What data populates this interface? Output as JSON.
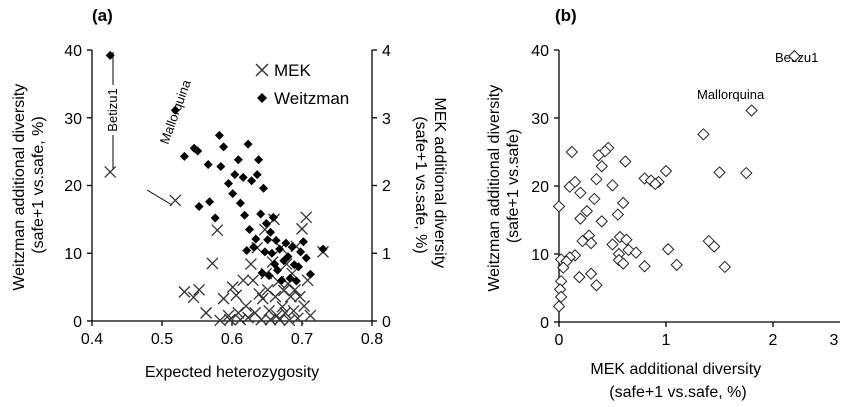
{
  "chart_data": [
    {
      "type": "scatter",
      "panel_label": "(a)",
      "xlabel": "Expected heterozygosity",
      "ylabel": "Weitzman additional diversity\n(safe+1 vs.safe, %)",
      "y2label": "MEK additional diversity\n(safe+1 vs.safe, %)",
      "xlim": [
        0.4,
        0.8
      ],
      "ylim": [
        0,
        40
      ],
      "y2lim": [
        0,
        4
      ],
      "xticks": [
        "0.4",
        "0.5",
        "0.6",
        "0.7",
        "0.8"
      ],
      "yticks": [
        "0",
        "10",
        "20",
        "30",
        "40"
      ],
      "y2ticks": [
        "0",
        "1",
        "2",
        "3",
        "4"
      ],
      "legend_position": "top-right",
      "annotations": [
        "Betizu1",
        "Mallorquina"
      ],
      "series": [
        {
          "name": "MEK",
          "marker": "x",
          "axis": "right",
          "points": [
            [
              0.426,
              2.2
            ],
            [
              0.519,
              1.78
            ],
            [
              0.532,
              0.43
            ],
            [
              0.545,
              0.35
            ],
            [
              0.553,
              0.46
            ],
            [
              0.563,
              0.12
            ],
            [
              0.572,
              0.85
            ],
            [
              0.579,
              1.34
            ],
            [
              0.583,
              0.01
            ],
            [
              0.588,
              0.33
            ],
            [
              0.595,
              0.08
            ],
            [
              0.597,
              0.02
            ],
            [
              0.601,
              0.5
            ],
            [
              0.606,
              0.38
            ],
            [
              0.609,
              0.12
            ],
            [
              0.612,
              0.02
            ],
            [
              0.616,
              0.6
            ],
            [
              0.62,
              0.22
            ],
            [
              0.623,
              0.05
            ],
            [
              0.627,
              0.84
            ],
            [
              0.63,
              0.6
            ],
            [
              0.633,
              0.12
            ],
            [
              0.636,
              1.08
            ],
            [
              0.639,
              0.4
            ],
            [
              0.642,
              0.02
            ],
            [
              0.644,
              0.33
            ],
            [
              0.647,
              1.35
            ],
            [
              0.649,
              0.7
            ],
            [
              0.651,
              0.46
            ],
            [
              0.653,
              0.15
            ],
            [
              0.655,
              0.02
            ],
            [
              0.658,
              0.87
            ],
            [
              0.66,
              1.5
            ],
            [
              0.662,
              0.36
            ],
            [
              0.664,
              0.08
            ],
            [
              0.666,
              0.58
            ],
            [
              0.668,
              0.02
            ],
            [
              0.67,
              1.08
            ],
            [
              0.672,
              0.21
            ],
            [
              0.674,
              0.45
            ],
            [
              0.676,
              0.12
            ],
            [
              0.678,
              0.84
            ],
            [
              0.68,
              0.55
            ],
            [
              0.682,
              0.01
            ],
            [
              0.684,
              0.36
            ],
            [
              0.686,
              0.7
            ],
            [
              0.688,
              0.15
            ],
            [
              0.69,
              0.46
            ],
            [
              0.692,
              1.1
            ],
            [
              0.694,
              0.04
            ],
            [
              0.697,
              0.36
            ],
            [
              0.7,
              1.36
            ],
            [
              0.703,
              0.22
            ],
            [
              0.706,
              1.53
            ],
            [
              0.708,
              0.6
            ],
            [
              0.712,
              0.08
            ],
            [
              0.73,
              1.02
            ]
          ]
        },
        {
          "name": "Weitzman",
          "marker": "diamond",
          "axis": "left",
          "points": [
            [
              0.426,
              39.2
            ],
            [
              0.519,
              31.1
            ],
            [
              0.532,
              24.3
            ],
            [
              0.546,
              25.5
            ],
            [
              0.551,
              25.1
            ],
            [
              0.553,
              16.9
            ],
            [
              0.566,
              23.1
            ],
            [
              0.568,
              17.6
            ],
            [
              0.576,
              15.2
            ],
            [
              0.582,
              27.4
            ],
            [
              0.584,
              22.8
            ],
            [
              0.588,
              25.7
            ],
            [
              0.595,
              20.3
            ],
            [
              0.601,
              18.8
            ],
            [
              0.604,
              21.6
            ],
            [
              0.609,
              23.8
            ],
            [
              0.612,
              17.4
            ],
            [
              0.616,
              21.2
            ],
            [
              0.618,
              15.6
            ],
            [
              0.621,
              10.4
            ],
            [
              0.623,
              26.1
            ],
            [
              0.625,
              13.5
            ],
            [
              0.628,
              20.7
            ],
            [
              0.631,
              10.9
            ],
            [
              0.634,
              12.1
            ],
            [
              0.636,
              21.6
            ],
            [
              0.638,
              23.8
            ],
            [
              0.641,
              15.8
            ],
            [
              0.643,
              7.1
            ],
            [
              0.645,
              19.6
            ],
            [
              0.647,
              10.2
            ],
            [
              0.649,
              14.4
            ],
            [
              0.651,
              12.0
            ],
            [
              0.653,
              6.7
            ],
            [
              0.655,
              13.1
            ],
            [
              0.657,
              10.0
            ],
            [
              0.659,
              15.3
            ],
            [
              0.661,
              8.4
            ],
            [
              0.663,
              11.9
            ],
            [
              0.665,
              7.5
            ],
            [
              0.668,
              10.6
            ],
            [
              0.671,
              6.0
            ],
            [
              0.674,
              8.9
            ],
            [
              0.677,
              11.5
            ],
            [
              0.68,
              9.5
            ],
            [
              0.683,
              6.3
            ],
            [
              0.686,
              10.9
            ],
            [
              0.689,
              8.3
            ],
            [
              0.692,
              5.9
            ],
            [
              0.695,
              8.0
            ],
            [
              0.698,
              10.2
            ],
            [
              0.702,
              11.7
            ],
            [
              0.706,
              9.3
            ],
            [
              0.712,
              6.9
            ],
            [
              0.73,
              10.6
            ]
          ]
        }
      ]
    },
    {
      "type": "scatter",
      "panel_label": "(b)",
      "xlabel": "MEK additional diversity\n(safe+1 vs.safe, %)",
      "ylabel": "Weitzman additional diversity\n(safe+1 vs.safe)",
      "xlim": [
        0,
        3
      ],
      "ylim": [
        0,
        40
      ],
      "xticks": [
        "0",
        "1",
        "2",
        "3"
      ],
      "yticks": [
        "0",
        "10",
        "20",
        "30",
        "40"
      ],
      "annotations": [
        "Betizu1",
        "Mallorquina"
      ],
      "series": [
        {
          "marker": "diamond-open",
          "points": [
            [
              2.2,
              39.1
            ],
            [
              1.8,
              31.1
            ],
            [
              1.35,
              27.6
            ],
            [
              0.46,
              25.6
            ],
            [
              0.43,
              25.1
            ],
            [
              0.37,
              24.5
            ],
            [
              0.12,
              25.0
            ],
            [
              0.62,
              23.6
            ],
            [
              0.4,
              22.9
            ],
            [
              0.8,
              21.1
            ],
            [
              0.93,
              20.6
            ],
            [
              0.86,
              20.8
            ],
            [
              0.9,
              20.3
            ],
            [
              0.1,
              19.9
            ],
            [
              1.0,
              22.2
            ],
            [
              1.5,
              22.0
            ],
            [
              1.75,
              21.9
            ],
            [
              0.35,
              21.0
            ],
            [
              0.15,
              20.6
            ],
            [
              0.5,
              20.1
            ],
            [
              0.2,
              19.0
            ],
            [
              0.33,
              18.1
            ],
            [
              0.6,
              17.5
            ],
            [
              0.0,
              17.0
            ],
            [
              0.26,
              16.3
            ],
            [
              0.55,
              15.8
            ],
            [
              0.2,
              15.2
            ],
            [
              0.4,
              14.8
            ],
            [
              0.28,
              12.7
            ],
            [
              0.22,
              11.9
            ],
            [
              0.57,
              12.5
            ],
            [
              0.63,
              12.1
            ],
            [
              0.5,
              11.4
            ],
            [
              0.3,
              11.6
            ],
            [
              1.4,
              11.9
            ],
            [
              1.45,
              11.1
            ],
            [
              0.65,
              10.6
            ],
            [
              0.56,
              10.0
            ],
            [
              1.02,
              10.7
            ],
            [
              0.72,
              10.2
            ],
            [
              0.15,
              9.8
            ],
            [
              0.1,
              9.5
            ],
            [
              0.02,
              9.2
            ],
            [
              0.07,
              8.9
            ],
            [
              0.56,
              9.1
            ],
            [
              0.6,
              8.6
            ],
            [
              0.8,
              8.2
            ],
            [
              1.1,
              8.4
            ],
            [
              1.55,
              8.1
            ],
            [
              0.3,
              7.1
            ],
            [
              0.19,
              6.6
            ],
            [
              0.04,
              8.0
            ],
            [
              0.02,
              6.0
            ],
            [
              0.35,
              5.4
            ],
            [
              0.01,
              4.8
            ],
            [
              0.02,
              3.7
            ],
            [
              0.0,
              2.3
            ]
          ]
        }
      ]
    }
  ]
}
